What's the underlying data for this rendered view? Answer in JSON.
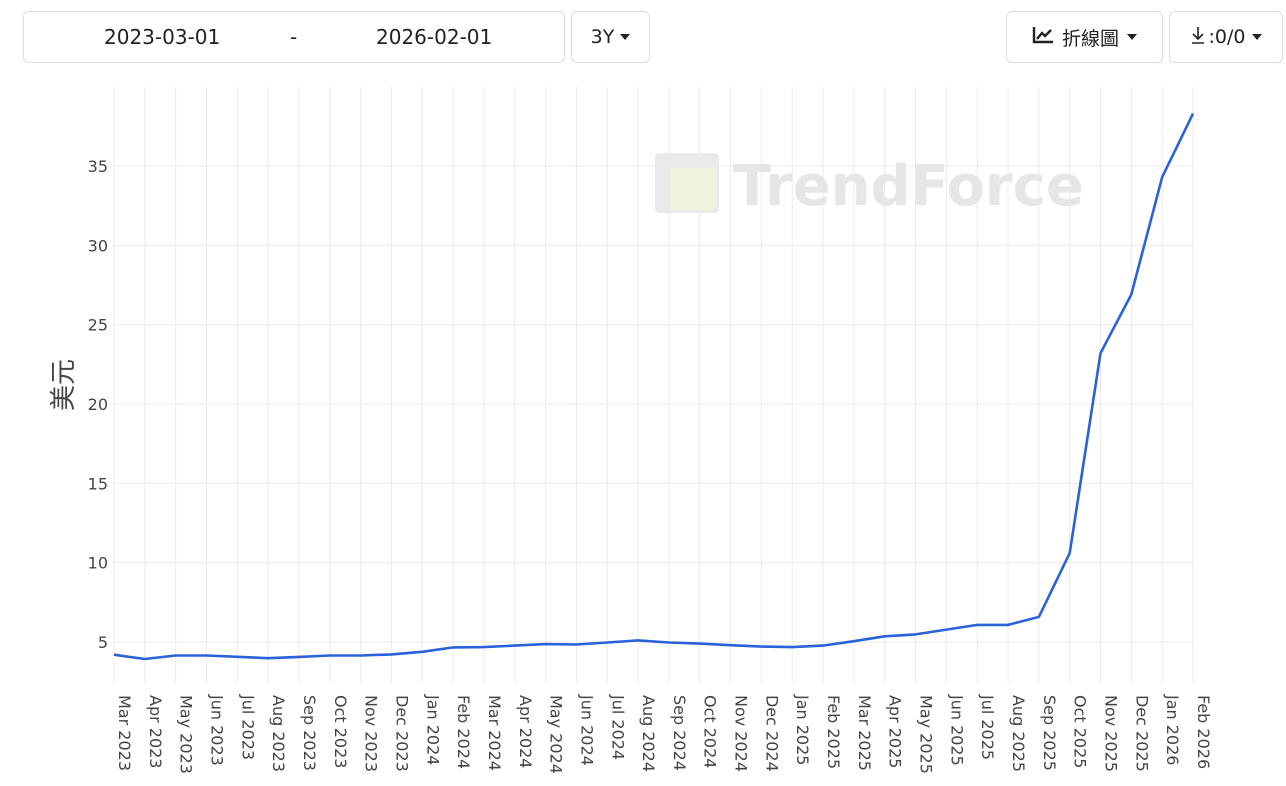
{
  "toolbar": {
    "start_date": "2023-03-01",
    "separator": "-",
    "end_date": "2026-02-01",
    "period": "3Y",
    "chart_type_label": "折線圖",
    "download_label": ":0/0"
  },
  "watermark": "TrendForce",
  "colors": {
    "line": "#2962d9",
    "grid": "#ebebeb"
  },
  "chart_data": {
    "type": "line",
    "ylabel": "美元",
    "xlabel": "",
    "ylim": [
      2.7,
      38.3
    ],
    "yticks": [
      5,
      10,
      15,
      20,
      25,
      30,
      35
    ],
    "grid": true,
    "categories": [
      "Mar 2023",
      "Apr 2023",
      "May 2023",
      "Jun 2023",
      "Jul 2023",
      "Aug 2023",
      "Sep 2023",
      "Oct 2023",
      "Nov 2023",
      "Dec 2023",
      "Jan 2024",
      "Feb 2024",
      "Mar 2024",
      "Apr 2024",
      "May 2024",
      "Jun 2024",
      "Jul 2024",
      "Aug 2024",
      "Sep 2024",
      "Oct 2024",
      "Nov 2024",
      "Dec 2024",
      "Jan 2025",
      "Feb 2025",
      "Mar 2025",
      "Apr 2025",
      "May 2025",
      "Jun 2025",
      "Jul 2025",
      "Aug 2025",
      "Sep 2025",
      "Oct 2025",
      "Nov 2025",
      "Dec 2025",
      "Jan 2026",
      "Feb 2026"
    ],
    "series": [
      {
        "values": [
          4.2,
          3.93,
          4.15,
          4.15,
          4.07,
          3.98,
          4.06,
          4.15,
          4.15,
          4.22,
          4.38,
          4.66,
          4.68,
          4.77,
          4.87,
          4.84,
          4.97,
          5.1,
          4.97,
          4.9,
          4.8,
          4.71,
          4.68,
          4.77,
          5.05,
          5.36,
          5.48,
          5.78,
          6.08,
          6.08,
          6.58,
          10.6,
          23.2,
          26.9,
          34.3,
          38.3
        ]
      }
    ]
  }
}
